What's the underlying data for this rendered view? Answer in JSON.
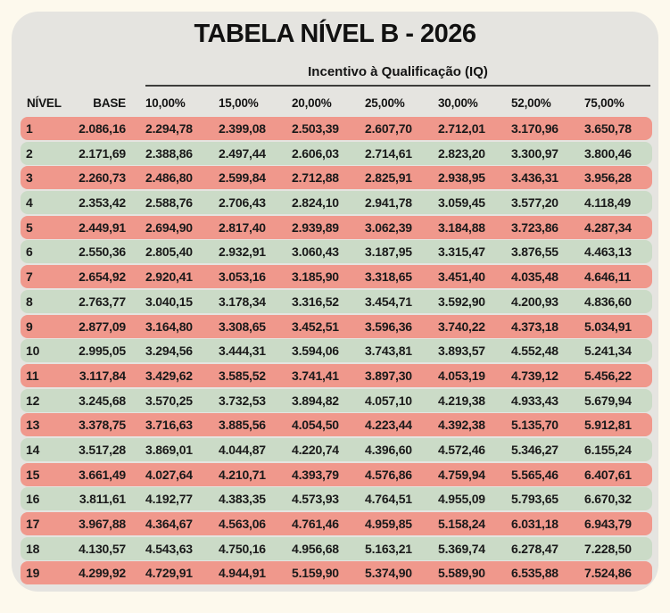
{
  "title": "TABELA NÍVEL B - 2026",
  "group_header": "Incentivo à Qualificação (IQ)",
  "table": {
    "columns": [
      "NÍVEL",
      "BASE",
      "10,00%",
      "15,00%",
      "20,00%",
      "25,00%",
      "30,00%",
      "52,00%",
      "75,00%"
    ],
    "rows": [
      [
        "1",
        "2.086,16",
        "2.294,78",
        "2.399,08",
        "2.503,39",
        "2.607,70",
        "2.712,01",
        "3.170,96",
        "3.650,78"
      ],
      [
        "2",
        "2.171,69",
        "2.388,86",
        "2.497,44",
        "2.606,03",
        "2.714,61",
        "2.823,20",
        "3.300,97",
        "3.800,46"
      ],
      [
        "3",
        "2.260,73",
        "2.486,80",
        "2.599,84",
        "2.712,88",
        "2.825,91",
        "2.938,95",
        "3.436,31",
        "3.956,28"
      ],
      [
        "4",
        "2.353,42",
        "2.588,76",
        "2.706,43",
        "2.824,10",
        "2.941,78",
        "3.059,45",
        "3.577,20",
        "4.118,49"
      ],
      [
        "5",
        "2.449,91",
        "2.694,90",
        "2.817,40",
        "2.939,89",
        "3.062,39",
        "3.184,88",
        "3.723,86",
        "4.287,34"
      ],
      [
        "6",
        "2.550,36",
        "2.805,40",
        "2.932,91",
        "3.060,43",
        "3.187,95",
        "3.315,47",
        "3.876,55",
        "4.463,13"
      ],
      [
        "7",
        "2.654,92",
        "2.920,41",
        "3.053,16",
        "3.185,90",
        "3.318,65",
        "3.451,40",
        "4.035,48",
        "4.646,11"
      ],
      [
        "8",
        "2.763,77",
        "3.040,15",
        "3.178,34",
        "3.316,52",
        "3.454,71",
        "3.592,90",
        "4.200,93",
        "4.836,60"
      ],
      [
        "9",
        "2.877,09",
        "3.164,80",
        "3.308,65",
        "3.452,51",
        "3.596,36",
        "3.740,22",
        "4.373,18",
        "5.034,91"
      ],
      [
        "10",
        "2.995,05",
        "3.294,56",
        "3.444,31",
        "3.594,06",
        "3.743,81",
        "3.893,57",
        "4.552,48",
        "5.241,34"
      ],
      [
        "11",
        "3.117,84",
        "3.429,62",
        "3.585,52",
        "3.741,41",
        "3.897,30",
        "4.053,19",
        "4.739,12",
        "5.456,22"
      ],
      [
        "12",
        "3.245,68",
        "3.570,25",
        "3.732,53",
        "3.894,82",
        "4.057,10",
        "4.219,38",
        "4.933,43",
        "5.679,94"
      ],
      [
        "13",
        "3.378,75",
        "3.716,63",
        "3.885,56",
        "4.054,50",
        "4.223,44",
        "4.392,38",
        "5.135,70",
        "5.912,81"
      ],
      [
        "14",
        "3.517,28",
        "3.869,01",
        "4.044,87",
        "4.220,74",
        "4.396,60",
        "4.572,46",
        "5.346,27",
        "6.155,24"
      ],
      [
        "15",
        "3.661,49",
        "4.027,64",
        "4.210,71",
        "4.393,79",
        "4.576,86",
        "4.759,94",
        "5.565,46",
        "6.407,61"
      ],
      [
        "16",
        "3.811,61",
        "4.192,77",
        "4.383,35",
        "4.573,93",
        "4.764,51",
        "4.955,09",
        "5.793,65",
        "6.670,32"
      ],
      [
        "17",
        "3.967,88",
        "4.364,67",
        "4.563,06",
        "4.761,46",
        "4.959,85",
        "5.158,24",
        "6.031,18",
        "6.943,79"
      ],
      [
        "18",
        "4.130,57",
        "4.543,63",
        "4.750,16",
        "4.956,68",
        "5.163,21",
        "5.369,74",
        "6.278,47",
        "7.228,50"
      ],
      [
        "19",
        "4.299,92",
        "4.729,91",
        "4.944,91",
        "5.159,90",
        "5.374,90",
        "5.589,90",
        "6.535,88",
        "7.524,86"
      ]
    ]
  },
  "colors": {
    "page_bg": "#FDF9ED",
    "card_bg": "#E5E4E0",
    "row_odd": "#F0988C",
    "row_even": "#CBDBC7",
    "rule": "#3D3D3B",
    "text": "#1A1A1A"
  }
}
